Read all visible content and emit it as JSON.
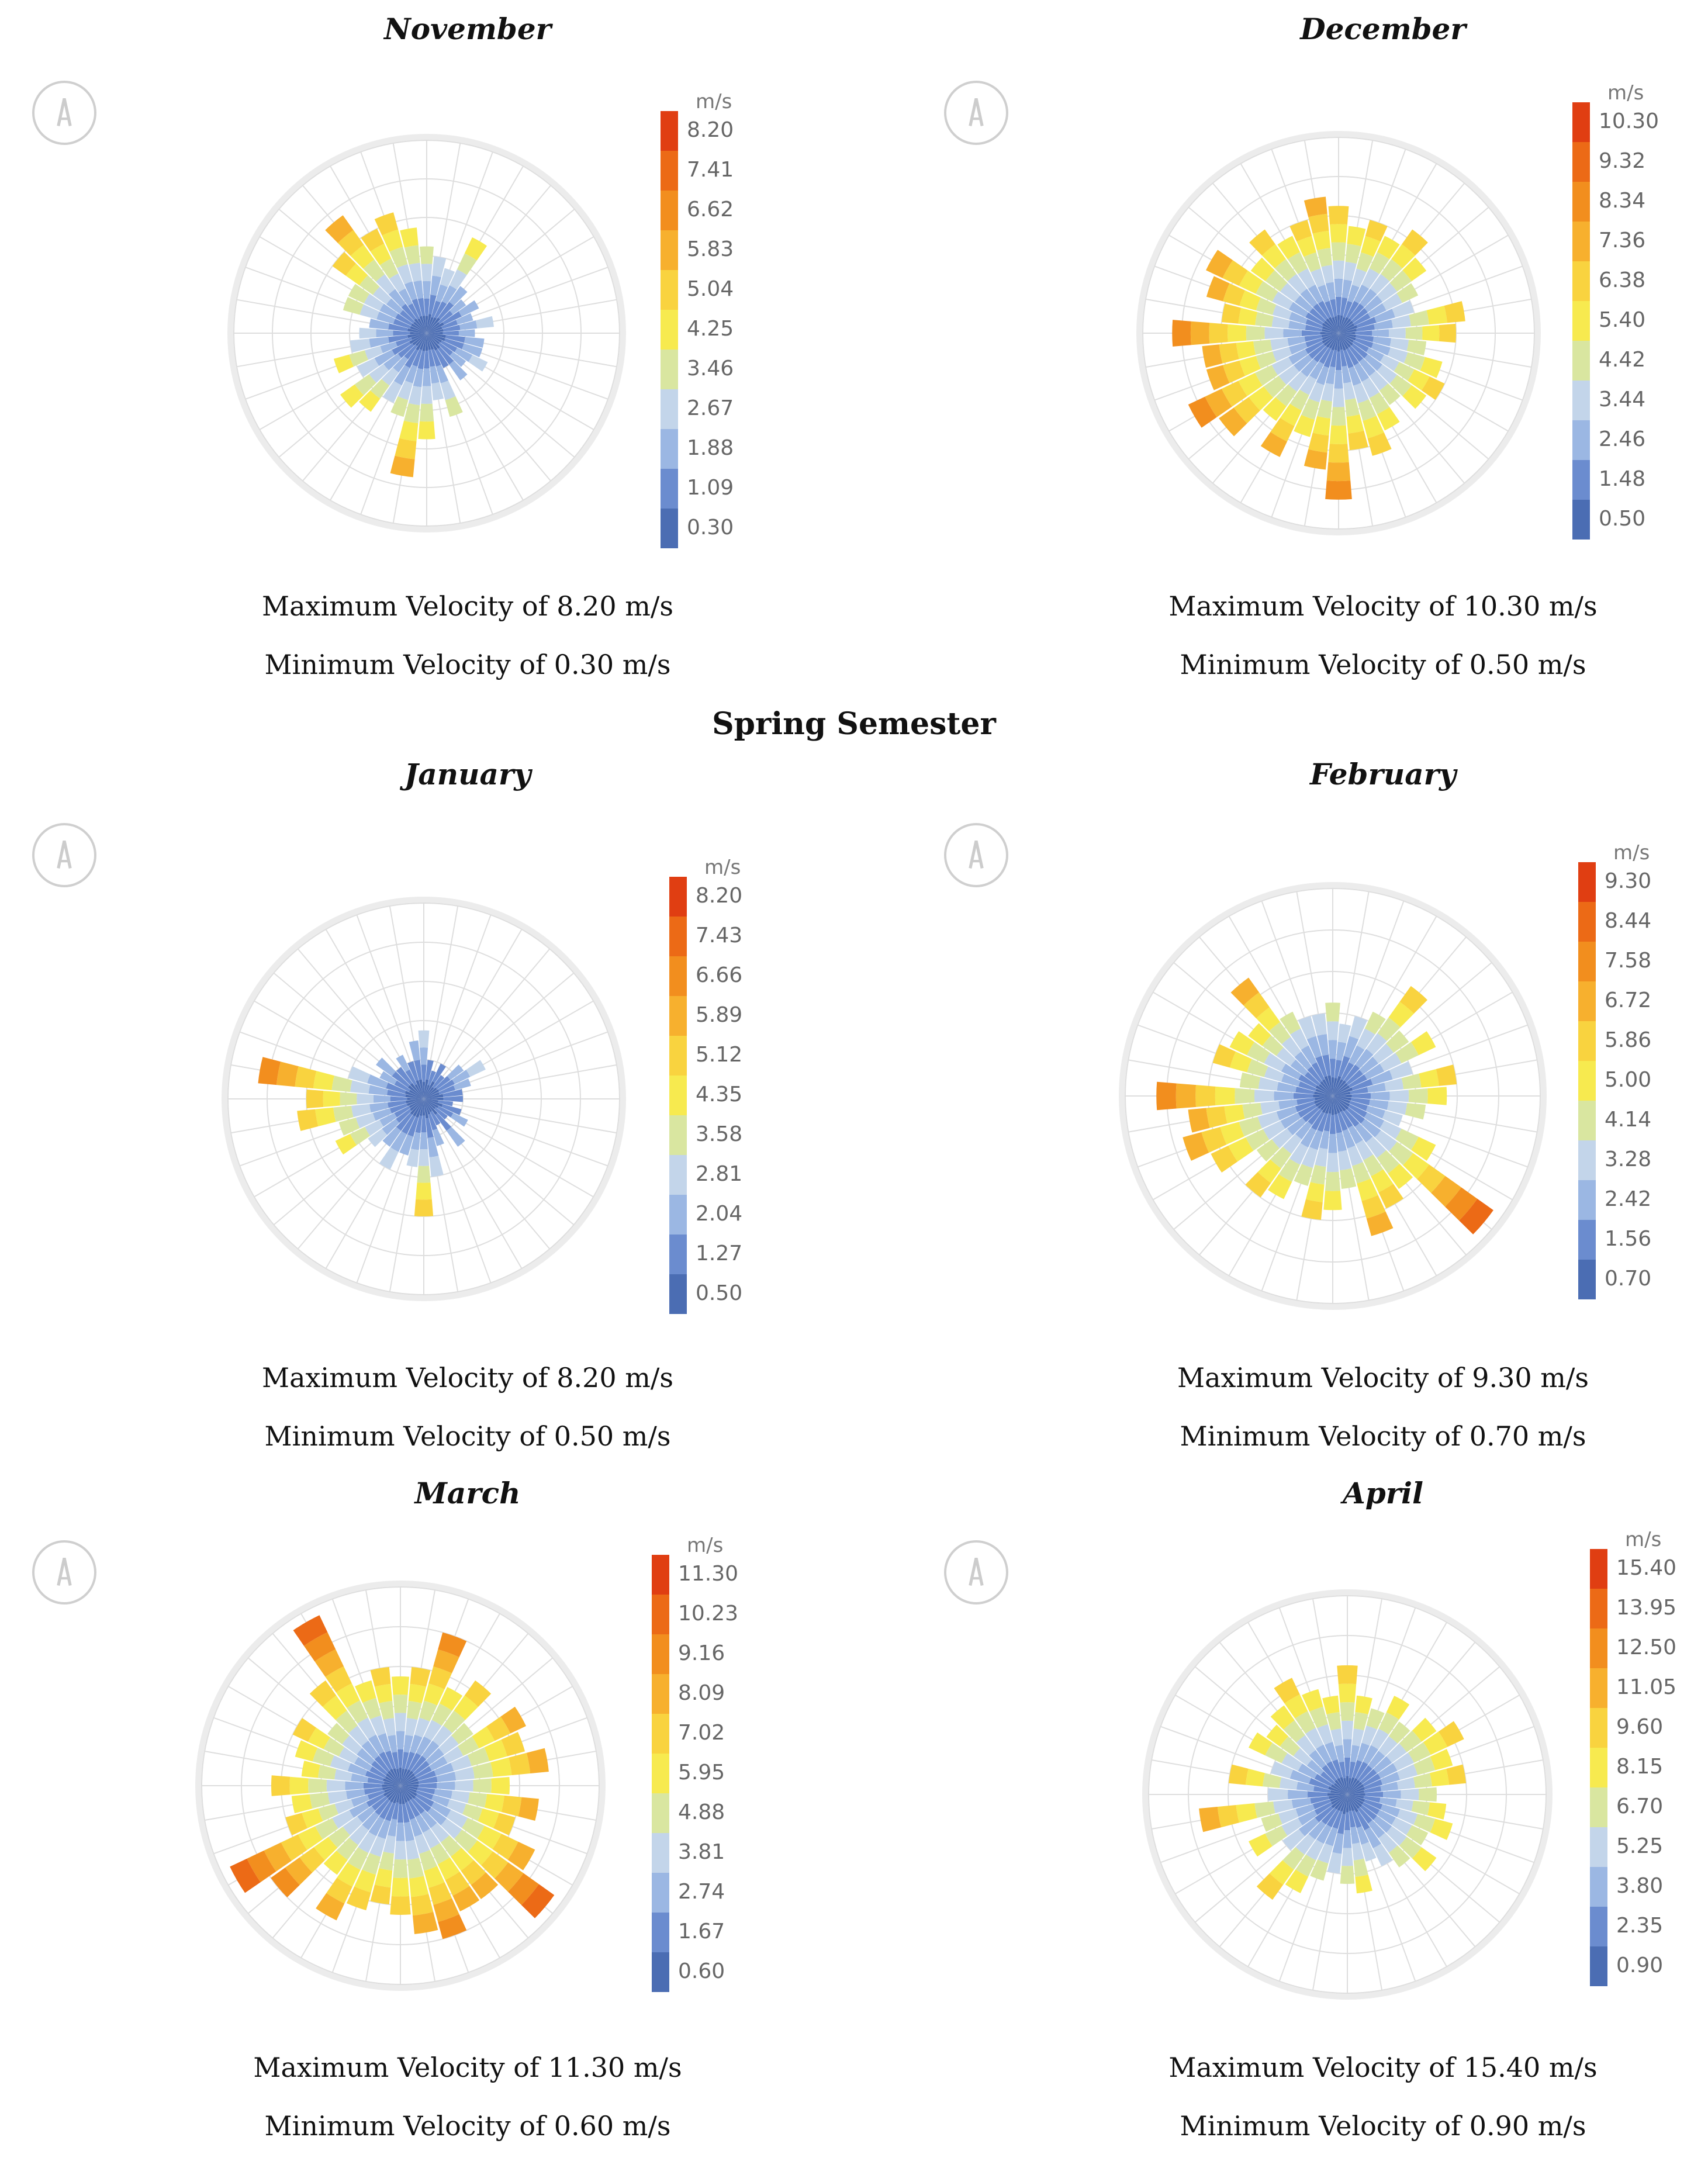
{
  "section_title": "Spring Semester",
  "legend_unit": "m/s",
  "icons": {
    "compass": "north-arrow-icon"
  },
  "colors": {
    "scale": [
      "#4b6db3",
      "#6b8ccf",
      "#9bb7e3",
      "#c3d5ea",
      "#d9e6a0",
      "#f7ea4f",
      "#f9d33f",
      "#f7b02e",
      "#f28e1e",
      "#ec6a16",
      "#e03e12"
    ],
    "grid": "#dedede"
  },
  "chart_data": [
    {
      "type": "polar-bar",
      "title": "November",
      "legend_ticks": [
        "8.20",
        "7.41",
        "6.62",
        "5.83",
        "5.04",
        "4.25",
        "3.46",
        "2.67",
        "1.88",
        "1.09",
        "0.30"
      ],
      "max_label": "Maximum Velocity of 8.20 m/s",
      "min_label": "Minimum Velocity of 0.30 m/s",
      "max_velocity": 8.2,
      "min_velocity": 0.3,
      "sectors": 36,
      "radii": [
        0.45,
        0.4,
        0.35,
        0.55,
        0.3,
        0.25,
        0.3,
        0.25,
        0.35,
        0.25,
        0.3,
        0.3,
        0.35,
        0.25,
        0.3,
        0.2,
        0.45,
        0.35,
        0.55,
        0.75,
        0.45,
        0.4,
        0.5,
        0.55,
        0.4,
        0.5,
        0.4,
        0.35,
        0.3,
        0.45,
        0.45,
        0.6,
        0.75,
        0.6,
        0.65,
        0.55
      ]
    },
    {
      "type": "polar-bar",
      "title": "December",
      "legend_ticks": [
        "10.30",
        "9.32",
        "8.34",
        "7.36",
        "6.38",
        "5.40",
        "4.42",
        "3.44",
        "2.46",
        "1.48",
        "0.50"
      ],
      "max_label": "Maximum Velocity of 10.30 m/s",
      "min_label": "Minimum Velocity of 0.50 m/s",
      "max_velocity": 10.3,
      "min_velocity": 0.5,
      "sectors": 36,
      "radii": [
        0.65,
        0.55,
        0.6,
        0.55,
        0.65,
        0.55,
        0.45,
        0.4,
        0.65,
        0.6,
        0.45,
        0.55,
        0.6,
        0.55,
        0.45,
        0.55,
        0.65,
        0.6,
        0.85,
        0.7,
        0.55,
        0.7,
        0.55,
        0.75,
        0.85,
        0.7,
        0.7,
        0.85,
        0.6,
        0.7,
        0.75,
        0.55,
        0.65,
        0.55,
        0.6,
        0.7
      ]
    },
    {
      "type": "polar-bar",
      "title": "January",
      "legend_ticks": [
        "8.20",
        "7.43",
        "6.66",
        "5.89",
        "5.12",
        "4.35",
        "3.58",
        "2.81",
        "2.04",
        "1.27",
        "0.50"
      ],
      "max_label": "Maximum Velocity of 8.20 m/s",
      "min_label": "Minimum Velocity of 0.50 m/s",
      "max_velocity": 8.2,
      "min_velocity": 0.5,
      "sectors": 36,
      "radii": [
        0.35,
        0.2,
        0.15,
        0.2,
        0.15,
        0.25,
        0.35,
        0.25,
        0.2,
        0.2,
        0.15,
        0.2,
        0.25,
        0.15,
        0.3,
        0.15,
        0.25,
        0.4,
        0.6,
        0.35,
        0.3,
        0.4,
        0.3,
        0.35,
        0.5,
        0.45,
        0.65,
        0.6,
        0.85,
        0.4,
        0.25,
        0.3,
        0.2,
        0.25,
        0.2,
        0.3
      ]
    },
    {
      "type": "polar-bar",
      "title": "February",
      "legend_ticks": [
        "9.30",
        "8.44",
        "7.58",
        "6.72",
        "5.86",
        "5.00",
        "4.14",
        "3.28",
        "2.42",
        "1.56",
        "0.70"
      ],
      "max_label": "Maximum Velocity of 9.30 m/s",
      "min_label": "Minimum Velocity of 0.70 m/s",
      "max_velocity": 9.3,
      "min_velocity": 0.7,
      "sectors": 36,
      "radii": [
        0.45,
        0.35,
        0.4,
        0.45,
        0.65,
        0.45,
        0.55,
        0.4,
        0.6,
        0.55,
        0.45,
        0.35,
        0.55,
        0.95,
        0.55,
        0.6,
        0.7,
        0.45,
        0.55,
        0.6,
        0.45,
        0.55,
        0.6,
        0.45,
        0.65,
        0.75,
        0.7,
        0.85,
        0.45,
        0.6,
        0.55,
        0.5,
        0.7,
        0.45,
        0.4,
        0.4
      ]
    },
    {
      "type": "polar-bar",
      "title": "March",
      "legend_ticks": [
        "11.30",
        "10.23",
        "9.16",
        "8.09",
        "7.02",
        "5.95",
        "4.88",
        "3.81",
        "2.74",
        "1.67",
        "0.60"
      ],
      "max_label": "Maximum Velocity of 11.30 m/s",
      "min_label": "Minimum Velocity of 0.60 m/s",
      "max_velocity": 11.3,
      "min_velocity": 0.6,
      "sectors": 36,
      "radii": [
        0.55,
        0.6,
        0.8,
        0.55,
        0.65,
        0.45,
        0.7,
        0.65,
        0.75,
        0.55,
        0.7,
        0.6,
        0.75,
        0.95,
        0.7,
        0.7,
        0.8,
        0.75,
        0.65,
        0.6,
        0.65,
        0.75,
        0.55,
        0.8,
        0.95,
        0.6,
        0.55,
        0.65,
        0.5,
        0.55,
        0.6,
        0.45,
        0.65,
        0.95,
        0.55,
        0.6
      ]
    },
    {
      "type": "polar-bar",
      "title": "April",
      "legend_ticks": [
        "15.40",
        "13.95",
        "12.50",
        "11.05",
        "9.60",
        "8.15",
        "6.70",
        "5.25",
        "3.80",
        "2.35",
        "0.90"
      ],
      "max_label": "Maximum Velocity of 15.40 m/s",
      "min_label": "Minimum Velocity of 0.90 m/s",
      "max_velocity": 15.4,
      "min_velocity": 0.9,
      "sectors": 36,
      "radii": [
        0.65,
        0.5,
        0.45,
        0.55,
        0.45,
        0.55,
        0.65,
        0.55,
        0.6,
        0.45,
        0.5,
        0.55,
        0.45,
        0.55,
        0.45,
        0.4,
        0.35,
        0.5,
        0.45,
        0.4,
        0.45,
        0.55,
        0.65,
        0.4,
        0.55,
        0.45,
        0.75,
        0.4,
        0.6,
        0.4,
        0.55,
        0.5,
        0.55,
        0.65,
        0.55,
        0.5
      ]
    }
  ]
}
